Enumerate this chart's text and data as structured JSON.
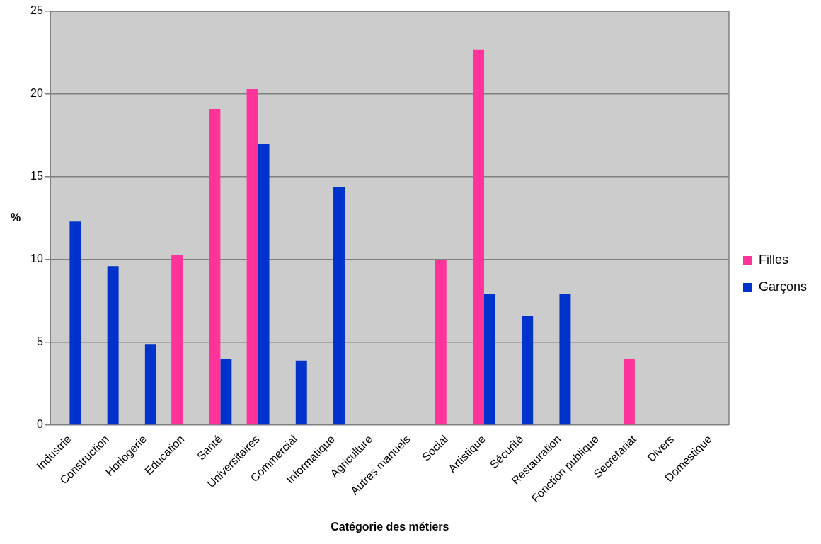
{
  "chart_data": {
    "type": "bar",
    "xlabel": "Catégorie des métiers",
    "ylabel": "%",
    "categories": [
      "Industrie",
      "Construction",
      "Horlogerie",
      "Education",
      "Santé",
      "Universitaires",
      "Commercial",
      "Informatique",
      "Agriculture",
      "Autres manuels",
      "Social",
      "Artistique",
      "Sécurité",
      "Restauration",
      "Fonction publique",
      "Secrétariat",
      "Divers",
      "Domestique"
    ],
    "series": [
      {
        "name": "Filles",
        "color": "#ff3399",
        "values": [
          0,
          0,
          0,
          10.3,
          19.1,
          20.3,
          0,
          0,
          0,
          0,
          10.0,
          22.7,
          0,
          0,
          0,
          4.0,
          0,
          0
        ]
      },
      {
        "name": "Garçons",
        "color": "#0033cc",
        "values": [
          12.3,
          9.6,
          4.9,
          0,
          4.0,
          17.0,
          3.9,
          14.4,
          0,
          0,
          0,
          7.9,
          6.6,
          7.9,
          0,
          0,
          0,
          0
        ]
      }
    ],
    "ylim": [
      0,
      25
    ],
    "yticks": [
      0,
      5,
      10,
      15,
      20,
      25
    ],
    "grid": "y",
    "legend": "right"
  }
}
